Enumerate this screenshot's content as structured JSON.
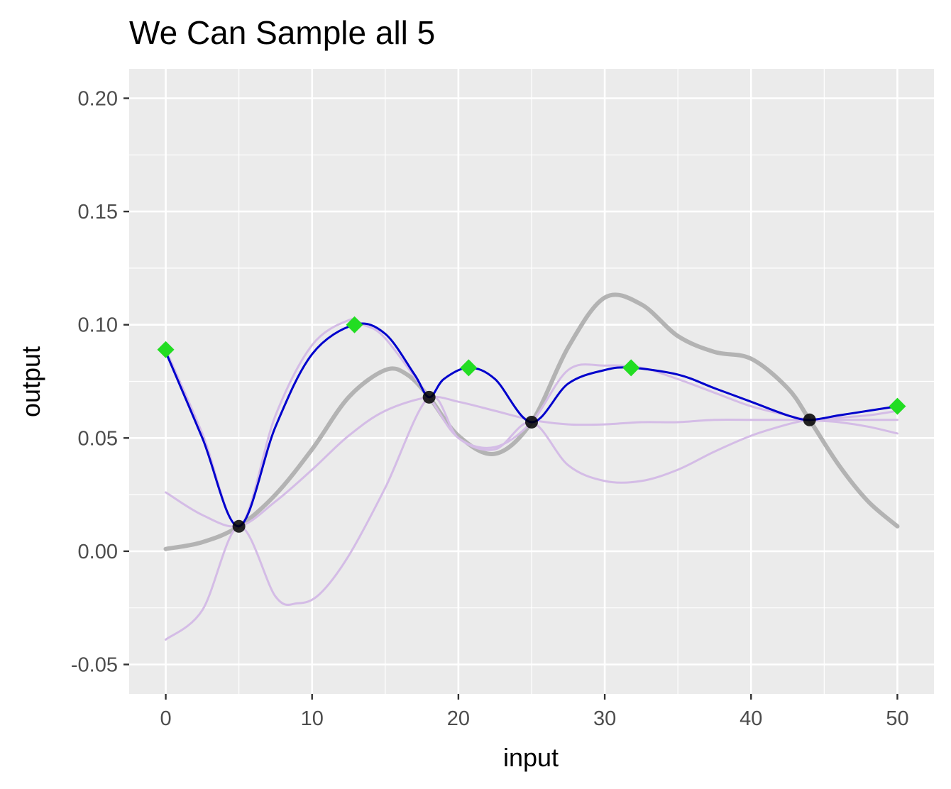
{
  "chart_data": {
    "type": "line",
    "title": "We Can Sample all 5",
    "xlabel": "input",
    "ylabel": "output",
    "xlim": [
      -2.5,
      52.5
    ],
    "ylim": [
      -0.063,
      0.213
    ],
    "x_ticks": [
      "0",
      "10",
      "20",
      "30",
      "40",
      "50"
    ],
    "x_tick_values": [
      0,
      10,
      20,
      30,
      40,
      50
    ],
    "y_ticks": [
      "-0.05",
      "0.00",
      "0.05",
      "0.10",
      "0.15",
      "0.20"
    ],
    "y_tick_values": [
      -0.05,
      0,
      0.05,
      0.1,
      0.15,
      0.2
    ],
    "grid": true,
    "legend": "none",
    "colors": {
      "panel": "#ebebeb",
      "grid": "#ffffff",
      "true_curve": "#b3b3b3",
      "samples": "#d4bce6",
      "fit": "#0000cc",
      "observed": "#000000",
      "sampled": "#22dd22"
    },
    "series": [
      {
        "role": "true-function",
        "x": [
          0,
          2.5,
          5,
          7.5,
          10,
          12.5,
          15,
          16.5,
          18,
          20,
          22.5,
          25,
          27.5,
          30,
          32.5,
          35,
          37.5,
          40,
          42.5,
          44,
          46,
          48,
          50
        ],
        "y": [
          0.001,
          0.004,
          0.011,
          0.025,
          0.045,
          0.068,
          0.08,
          0.078,
          0.068,
          0.051,
          0.043,
          0.057,
          0.09,
          0.112,
          0.109,
          0.095,
          0.088,
          0.085,
          0.072,
          0.058,
          0.038,
          0.022,
          0.011
        ]
      },
      {
        "role": "posterior-sample",
        "x": [
          0,
          2.5,
          5,
          7.5,
          10,
          12.5,
          15,
          18,
          20,
          22.5,
          25,
          27.5,
          30,
          32.5,
          35,
          37.5,
          40,
          42.5,
          44,
          46,
          48,
          50
        ],
        "y": [
          0.026,
          0.016,
          0.011,
          0.022,
          0.036,
          0.051,
          0.062,
          0.068,
          0.066,
          0.062,
          0.058,
          0.056,
          0.056,
          0.057,
          0.057,
          0.058,
          0.058,
          0.058,
          0.058,
          0.058,
          0.058,
          0.058
        ]
      },
      {
        "role": "posterior-sample",
        "x": [
          0,
          2.5,
          5,
          7.5,
          9,
          10.5,
          12.5,
          15,
          18,
          20,
          22.5,
          25,
          27.5,
          30,
          32.5,
          35,
          37.5,
          40,
          42.5,
          44,
          46,
          48,
          50
        ],
        "y": [
          -0.039,
          -0.026,
          0.011,
          -0.02,
          -0.023,
          -0.019,
          -0.002,
          0.028,
          0.068,
          0.05,
          0.046,
          0.057,
          0.08,
          0.082,
          0.081,
          0.076,
          0.07,
          0.064,
          0.06,
          0.058,
          0.057,
          0.055,
          0.052
        ]
      },
      {
        "role": "posterior-sample",
        "x": [
          0,
          2.5,
          5,
          7.5,
          10,
          12.5,
          13.5,
          15,
          18,
          20,
          22.5,
          25,
          27.5,
          30,
          32.5,
          35,
          37.5,
          40,
          42.5,
          44,
          46,
          48,
          50
        ],
        "y": [
          0.089,
          0.052,
          0.011,
          0.06,
          0.091,
          0.102,
          0.1,
          0.094,
          0.068,
          0.05,
          0.045,
          0.057,
          0.038,
          0.031,
          0.031,
          0.036,
          0.044,
          0.051,
          0.056,
          0.058,
          0.059,
          0.06,
          0.062
        ]
      },
      {
        "role": "fitted-mean",
        "x": [
          0,
          2.5,
          5,
          7.5,
          10,
          12.9,
          15,
          17,
          18,
          19,
          20.7,
          22.5,
          25,
          27.5,
          30,
          31.8,
          35,
          37.5,
          40,
          42.5,
          44,
          46,
          48,
          50
        ],
        "y": [
          0.088,
          0.05,
          0.011,
          0.055,
          0.087,
          0.1,
          0.096,
          0.078,
          0.068,
          0.076,
          0.081,
          0.076,
          0.057,
          0.074,
          0.08,
          0.081,
          0.078,
          0.072,
          0.066,
          0.06,
          0.058,
          0.06,
          0.062,
          0.064
        ]
      }
    ],
    "observed_points": {
      "x": [
        5,
        18,
        25,
        44
      ],
      "y": [
        0.011,
        0.068,
        0.057,
        0.058
      ]
    },
    "sampled_points": {
      "x": [
        0,
        12.9,
        20.7,
        31.8,
        50
      ],
      "y": [
        0.089,
        0.1,
        0.081,
        0.081,
        0.064
      ]
    }
  }
}
